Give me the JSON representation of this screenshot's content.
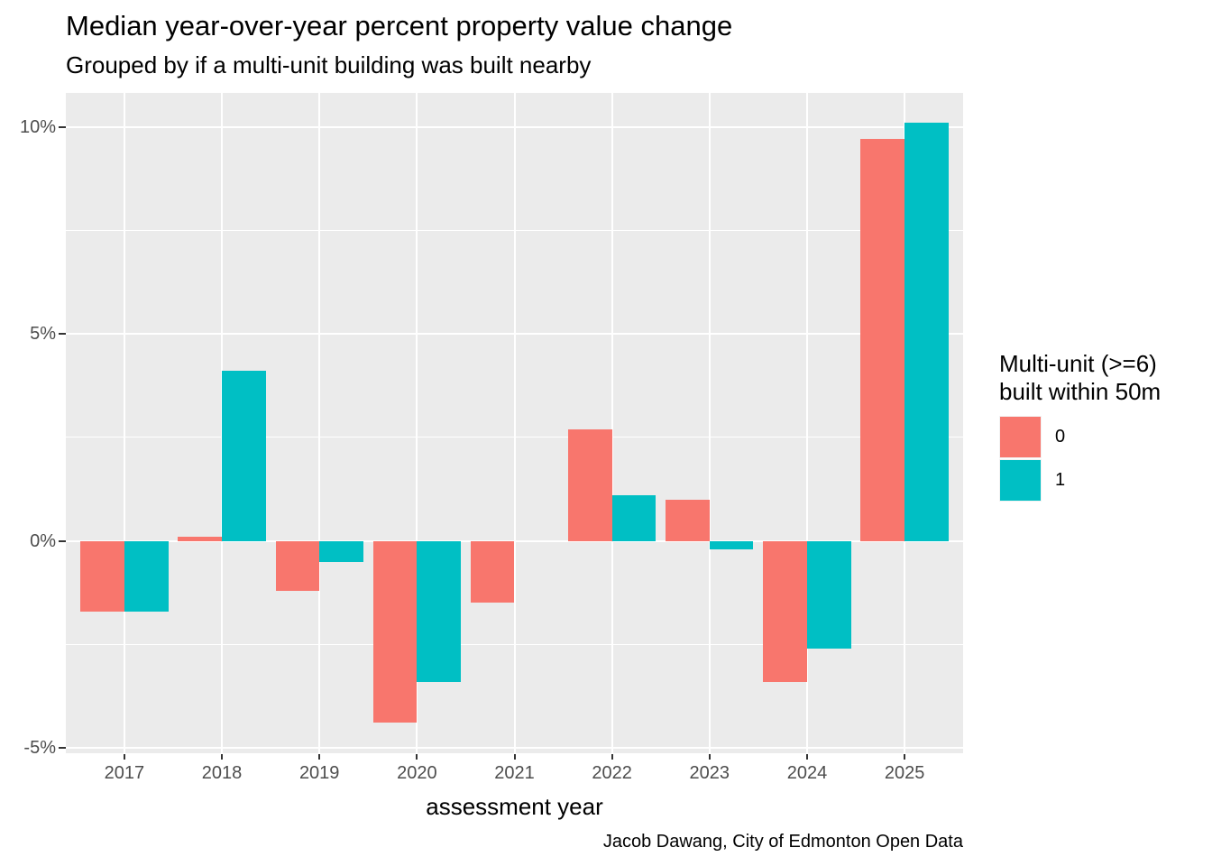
{
  "chart_data": {
    "type": "bar",
    "title": "Median year-over-year percent property value change",
    "subtitle": "Grouped by if a multi-unit building was built nearby",
    "caption": "Jacob Dawang, City of Edmonton Open Data",
    "xlabel": "assessment year",
    "ylabel": "",
    "categories": [
      "2017",
      "2018",
      "2019",
      "2020",
      "2021",
      "2022",
      "2023",
      "2024",
      "2025"
    ],
    "series": [
      {
        "name": "0",
        "color": "#F8766D",
        "values": [
          -1.7,
          0.1,
          -1.2,
          -4.4,
          -1.5,
          2.7,
          1.0,
          -3.4,
          9.7
        ]
      },
      {
        "name": "1",
        "color": "#00BFC4",
        "values": [
          -1.7,
          4.1,
          -0.5,
          -3.4,
          0,
          1.1,
          -0.2,
          -2.6,
          10.1
        ]
      }
    ],
    "y_ticks": [
      {
        "value": 10,
        "label": "10%"
      },
      {
        "value": 5,
        "label": "5%"
      },
      {
        "value": 0,
        "label": "0%"
      },
      {
        "value": -5,
        "label": "-5%"
      }
    ],
    "y_minor": [
      7.5,
      2.5,
      -2.5
    ],
    "ylim": [
      -5.13,
      10.82
    ],
    "grid": true,
    "legend_position": "right",
    "legend": {
      "title_lines": [
        "Multi-unit (>=6)",
        "built within 50m"
      ]
    },
    "colors": {
      "panel_background": "#EBEBEB",
      "gridline": "#FFFFFF",
      "axis_text": "#4D4D4D",
      "tick_mark": "#333333",
      "text": "#000000"
    }
  }
}
